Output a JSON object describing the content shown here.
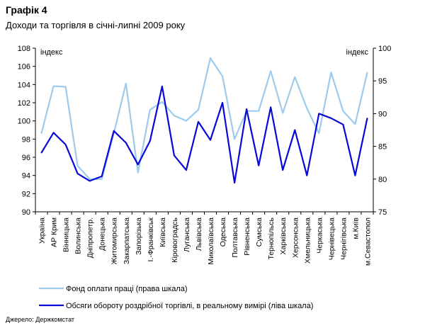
{
  "title": "Графік 4",
  "subtitle": "Доходи та торгівля в січні-липні 2009 року",
  "source": "Джерело: Держкомстат",
  "colors": {
    "light_series": "#9ecbeb",
    "dark_series": "#0a08d6",
    "axis": "#000000"
  },
  "chart_data": {
    "type": "line",
    "left_axis": {
      "label": "індекс",
      "ylim": [
        90,
        108
      ],
      "ticks": [
        90,
        92,
        94,
        96,
        98,
        100,
        102,
        104,
        106,
        108
      ]
    },
    "right_axis": {
      "label": "індекс",
      "ylim": [
        75,
        100
      ],
      "ticks": [
        75,
        80,
        85,
        90,
        95,
        100
      ]
    },
    "categories": [
      "Україна",
      "АР Крим",
      "Вінницька",
      "Волинська",
      "Дніпропетр.",
      "Донецька",
      "Житомирська",
      "Закарпатська",
      "Запорізька",
      "І.-Франківськ",
      "Київська",
      "Кіровоградсь",
      "Луганська",
      "Львівська",
      "Миколаївська",
      "Одеська",
      "Полтавська",
      "Рівненська",
      "Сумська",
      "Тернопільсь",
      "Харківська",
      "Херсонська",
      "Хмельницька",
      "Черкаська",
      "Чернівецька",
      "Чернігівська",
      "м.Київ",
      "м.Севастопол"
    ],
    "series": [
      {
        "name": "Фонд оплати праці (права шкала)",
        "axis": "right",
        "values": [
          87.0,
          94.2,
          94.1,
          82.0,
          80.0,
          80.0,
          87.0,
          94.6,
          81.0,
          90.6,
          91.8,
          89.7,
          88.9,
          90.6,
          98.5,
          95.7,
          86.1,
          90.4,
          90.4,
          96.5,
          90.1,
          95.6,
          90.8,
          87.0,
          96.3,
          90.4,
          88.4,
          96.3
        ]
      },
      {
        "name": "Обсяги обороту роздрібної торгівлі, в реальному вимірі (ліва шкала)",
        "axis": "left",
        "values": [
          96.5,
          98.7,
          97.4,
          94.2,
          93.4,
          93.9,
          98.9,
          97.6,
          95.2,
          97.8,
          103.8,
          96.2,
          94.6,
          99.9,
          97.9,
          102.0,
          93.2,
          101.3,
          95.1,
          101.5,
          94.6,
          99.0,
          94.0,
          100.8,
          100.3,
          99.6,
          94.0,
          100.3
        ]
      }
    ],
    "legend_position": "bottom-left"
  }
}
